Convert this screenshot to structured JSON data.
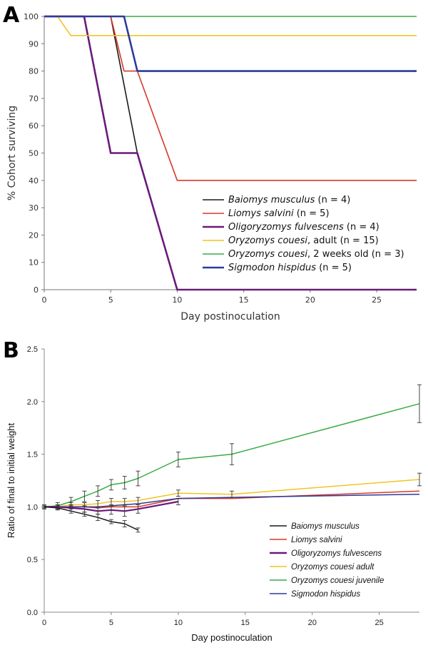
{
  "chart_data": [
    {
      "panel": "A",
      "type": "line",
      "xlabel": "Day postinoculation",
      "ylabel": "% Cohort surviving",
      "xlim": [
        0,
        28
      ],
      "ylim": [
        0,
        100
      ],
      "xticks": [
        0,
        5,
        10,
        15,
        20,
        25
      ],
      "yticks": [
        0,
        10,
        20,
        30,
        40,
        50,
        60,
        70,
        80,
        90,
        100
      ],
      "grid": false,
      "legend_position": "right",
      "series": [
        {
          "name_italic": "Baiomys musculus",
          "name_rest": " (n = 4)",
          "color": "#1a1a1a",
          "width": 1.6,
          "points": [
            [
              0,
              100
            ],
            [
              5,
              100
            ],
            [
              7,
              50
            ],
            [
              10,
              0
            ],
            [
              28,
              0
            ]
          ]
        },
        {
          "name_italic": "Liomys salvini",
          "name_rest": " (n = 5)",
          "color": "#d63a2a",
          "width": 1.6,
          "points": [
            [
              0,
              100
            ],
            [
              5,
              100
            ],
            [
              6,
              80
            ],
            [
              7,
              80
            ],
            [
              10,
              40
            ],
            [
              28,
              40
            ]
          ]
        },
        {
          "name_italic": "Oligoryzomys fulvescens",
          "name_rest": " (n = 4)",
          "color": "#6a1a7a",
          "width": 2.6,
          "points": [
            [
              0,
              100
            ],
            [
              3,
              100
            ],
            [
              5,
              50
            ],
            [
              7,
              50
            ],
            [
              10,
              0
            ],
            [
              28,
              0
            ]
          ]
        },
        {
          "name_italic": "Oryzomys couesi",
          "name_rest": ", adult (n = 15)",
          "color": "#f2c422",
          "width": 1.6,
          "points": [
            [
              0,
              100
            ],
            [
              1,
              100
            ],
            [
              2,
              93
            ],
            [
              28,
              93
            ]
          ]
        },
        {
          "name_italic": "Oryzomys couesi",
          "name_rest": ", 2 weeks old (n = 3)",
          "color": "#3aaa44",
          "width": 1.6,
          "points": [
            [
              0,
              100
            ],
            [
              28,
              100
            ]
          ]
        },
        {
          "name_italic": "Sigmodon hispidus",
          "name_rest": " (n = 5)",
          "color": "#2e3a9a",
          "width": 2.6,
          "points": [
            [
              0,
              100
            ],
            [
              6,
              100
            ],
            [
              7,
              80
            ],
            [
              28,
              80
            ]
          ]
        }
      ]
    },
    {
      "panel": "B",
      "type": "line",
      "xlabel": "Day postinoculation",
      "ylabel": "Ratio of final to initial weight",
      "xlim": [
        0,
        28
      ],
      "ylim": [
        0.0,
        2.5
      ],
      "xticks": [
        0,
        5,
        10,
        15,
        20,
        25
      ],
      "yticks": [
        0.0,
        0.5,
        1.0,
        1.5,
        2.0,
        2.5
      ],
      "ytick_labels": [
        "0.0",
        "0.5",
        "1.0",
        "1.5",
        "2.0",
        "2.5"
      ],
      "grid": false,
      "legend_position": "right",
      "series": [
        {
          "name": "Baiomys musculus",
          "color": "#1a1a1a",
          "x": [
            0,
            1,
            2,
            3,
            4,
            5,
            6,
            7
          ],
          "y": [
            1.0,
            0.99,
            0.96,
            0.93,
            0.9,
            0.86,
            0.84,
            0.78
          ],
          "err": [
            0.01,
            0.02,
            0.02,
            0.02,
            0.03,
            0.02,
            0.03,
            0.02
          ]
        },
        {
          "name": "Liomys salvini",
          "color": "#d63a2a",
          "x": [
            0,
            1,
            2,
            3,
            4,
            5,
            6,
            7,
            10,
            14,
            28
          ],
          "y": [
            1.0,
            1.0,
            1.0,
            1.0,
            0.99,
            1.0,
            1.0,
            1.0,
            1.08,
            1.08,
            1.15
          ],
          "err": [
            0,
            0,
            0,
            0,
            0,
            0,
            0,
            0,
            0,
            0,
            0
          ]
        },
        {
          "name": "Oligoryzomys fulvescens",
          "color": "#6a1a7a",
          "x": [
            0,
            1,
            2,
            3,
            4,
            5,
            6,
            7,
            10
          ],
          "y": [
            1.0,
            1.0,
            0.99,
            0.98,
            0.96,
            0.97,
            0.96,
            0.98,
            1.05
          ],
          "err": [
            0.01,
            0.02,
            0.03,
            0.03,
            0.03,
            0.04,
            0.05,
            0.04,
            0.03
          ]
        },
        {
          "name": "Oryzomys couesi adult",
          "color": "#f2c422",
          "x": [
            0,
            1,
            2,
            3,
            4,
            5,
            6,
            7,
            10,
            14,
            28
          ],
          "y": [
            1.0,
            1.0,
            1.02,
            1.02,
            1.03,
            1.05,
            1.05,
            1.06,
            1.13,
            1.12,
            1.26
          ],
          "err": [
            0.01,
            0.02,
            0.02,
            0.02,
            0.03,
            0.03,
            0.03,
            0.03,
            0.03,
            0.03,
            0.06
          ]
        },
        {
          "name": "Oryzomys couesi juvenile",
          "color": "#3aaa44",
          "x": [
            0,
            1,
            2,
            3,
            4,
            5,
            6,
            7,
            10,
            14,
            28
          ],
          "y": [
            1.0,
            1.01,
            1.05,
            1.1,
            1.15,
            1.21,
            1.23,
            1.27,
            1.45,
            1.5,
            1.98
          ],
          "err": [
            0.02,
            0.03,
            0.04,
            0.05,
            0.05,
            0.05,
            0.06,
            0.07,
            0.07,
            0.1,
            0.18
          ]
        },
        {
          "name": "Sigmodon hispidus",
          "color": "#2e3a9a",
          "x": [
            0,
            1,
            2,
            3,
            4,
            5,
            6,
            7,
            10,
            14,
            28
          ],
          "y": [
            1.0,
            1.0,
            1.0,
            1.0,
            1.0,
            1.01,
            1.02,
            1.03,
            1.08,
            1.09,
            1.12
          ],
          "err": [
            0,
            0,
            0,
            0,
            0,
            0,
            0,
            0,
            0,
            0,
            0
          ]
        }
      ]
    }
  ]
}
